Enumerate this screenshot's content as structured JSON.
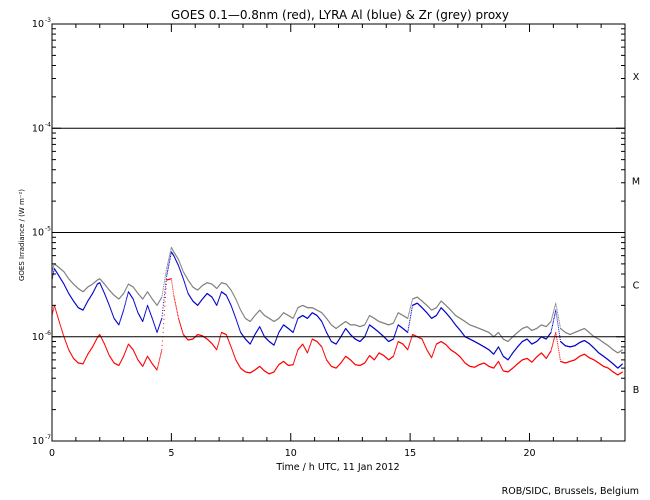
{
  "chart_data": {
    "type": "scatter",
    "title": "GOES 0.1—0.8nm (red), LYRA Al (blue) & Zr (grey) proxy",
    "xlabel": "Time / h UTC, 11 Jan 2012",
    "ylabel": "GOES Irradiance / (W m⁻²)",
    "xlim": [
      0,
      24
    ],
    "ylim": [
      1e-07,
      0.001
    ],
    "yscale": "log",
    "x_ticks": [
      "0",
      "5",
      "10",
      "15",
      "20"
    ],
    "y_ticks": [
      {
        "value": 1e-07,
        "base": "10",
        "exp": "-7"
      },
      {
        "value": 1e-06,
        "base": "10",
        "exp": "-6"
      },
      {
        "value": 1e-05,
        "base": "10",
        "exp": "-5"
      },
      {
        "value": 0.0001,
        "base": "10",
        "exp": "-4"
      },
      {
        "value": 0.001,
        "base": "10",
        "exp": "-3"
      }
    ],
    "flare_classes": [
      {
        "label": "B",
        "level": 3.16e-07
      },
      {
        "label": "C",
        "level": 3.16e-06
      },
      {
        "label": "M",
        "level": 3.16e-05
      },
      {
        "label": "X",
        "level": 0.000316
      }
    ],
    "threshold_lines": [
      1e-06,
      1e-05,
      0.0001
    ],
    "grid": false,
    "legend": "none",
    "series": [
      {
        "color": "#ff0000",
        "x": [
          0.0,
          0.1,
          0.3,
          0.5,
          0.7,
          0.9,
          1.1,
          1.3,
          1.5,
          1.7,
          1.9,
          2.0,
          2.2,
          2.4,
          2.6,
          2.8,
          3.0,
          3.2,
          3.4,
          3.6,
          3.8,
          4.0,
          4.2,
          4.4,
          4.6,
          4.8,
          5.0,
          5.1,
          5.3,
          5.5,
          5.7,
          5.9,
          6.1,
          6.3,
          6.5,
          6.7,
          6.9,
          7.1,
          7.3,
          7.5,
          7.7,
          7.9,
          8.1,
          8.3,
          8.5,
          8.7,
          8.9,
          9.1,
          9.3,
          9.5,
          9.7,
          9.9,
          10.1,
          10.3,
          10.5,
          10.7,
          10.9,
          11.1,
          11.3,
          11.5,
          11.7,
          11.9,
          12.1,
          12.3,
          12.5,
          12.7,
          12.9,
          13.1,
          13.3,
          13.5,
          13.7,
          13.9,
          14.1,
          14.3,
          14.5,
          14.7,
          14.9,
          15.1,
          15.3,
          15.5,
          15.7,
          15.9,
          16.1,
          16.3,
          16.5,
          16.7,
          16.9,
          17.1,
          17.3,
          17.5,
          17.7,
          17.9,
          18.1,
          18.3,
          18.5,
          18.7,
          18.9,
          19.1,
          19.3,
          19.5,
          19.7,
          19.9,
          20.1,
          20.3,
          20.5,
          20.7,
          20.9,
          21.1,
          21.3,
          21.5,
          21.7,
          21.9,
          22.1,
          22.3,
          22.5,
          22.7,
          22.9,
          23.1,
          23.3,
          23.5,
          23.7,
          23.9
        ],
        "y": [
          1.6e-06,
          2e-06,
          1.4e-06,
          1e-06,
          7.5e-07,
          6.2e-07,
          5.6e-07,
          5.5e-07,
          6.8e-07,
          8e-07,
          9.8e-07,
          1.05e-06,
          8.5e-07,
          6.6e-07,
          5.6e-07,
          5.3e-07,
          6.5e-07,
          8.5e-07,
          7.5e-07,
          6e-07,
          5.2e-07,
          6.5e-07,
          5.5e-07,
          4.8e-07,
          7.5e-07,
          3.5e-06,
          3.6e-06,
          2.5e-06,
          1.5e-06,
          1.05e-06,
          9.3e-07,
          9.5e-07,
          1.05e-06,
          1.02e-06,
          9.5e-07,
          8.6e-07,
          7.5e-07,
          1.1e-06,
          1.05e-06,
          8e-07,
          6e-07,
          5e-07,
          4.6e-07,
          4.5e-07,
          4.8e-07,
          5.2e-07,
          4.7e-07,
          4.4e-07,
          4.6e-07,
          5.4e-07,
          5.8e-07,
          5.3e-07,
          5.4e-07,
          7.5e-07,
          8.5e-07,
          7e-07,
          9.5e-07,
          9e-07,
          8e-07,
          6e-07,
          5.2e-07,
          5e-07,
          5.6e-07,
          6.5e-07,
          6e-07,
          5.4e-07,
          5.3e-07,
          5.6e-07,
          6.6e-07,
          6e-07,
          7e-07,
          6.6e-07,
          6e-07,
          6.5e-07,
          9e-07,
          8.5e-07,
          7.5e-07,
          1.05e-06,
          1e-06,
          9.5e-07,
          7.5e-07,
          6.3e-07,
          8.5e-07,
          9e-07,
          8.4e-07,
          7.5e-07,
          7e-07,
          6.4e-07,
          5.6e-07,
          5.2e-07,
          5.1e-07,
          5.4e-07,
          5.6e-07,
          5.2e-07,
          5e-07,
          5.8e-07,
          4.7e-07,
          4.6e-07,
          5e-07,
          5.5e-07,
          6e-07,
          6.2e-07,
          5.7e-07,
          6.4e-07,
          7e-07,
          6.2e-07,
          7.3e-07,
          1.1e-06,
          5.8e-07,
          5.6e-07,
          5.8e-07,
          6e-07,
          6.5e-07,
          6.8e-07,
          6.3e-07,
          6e-07,
          5.6e-07,
          5.2e-07,
          5e-07,
          4.6e-07,
          4.3e-07,
          4.6e-07
        ]
      },
      {
        "color": "#0000cc",
        "x": [
          0.0,
          0.1,
          0.3,
          0.5,
          0.7,
          0.9,
          1.1,
          1.3,
          1.5,
          1.7,
          1.9,
          2.0,
          2.2,
          2.4,
          2.6,
          2.8,
          3.0,
          3.2,
          3.4,
          3.6,
          3.8,
          4.0,
          4.2,
          4.4,
          4.6,
          4.8,
          5.0,
          5.1,
          5.3,
          5.5,
          5.7,
          5.9,
          6.1,
          6.3,
          6.5,
          6.7,
          6.9,
          7.1,
          7.3,
          7.5,
          7.7,
          7.9,
          8.1,
          8.3,
          8.5,
          8.7,
          8.9,
          9.1,
          9.3,
          9.5,
          9.7,
          9.9,
          10.1,
          10.3,
          10.5,
          10.7,
          10.9,
          11.1,
          11.3,
          11.5,
          11.7,
          11.9,
          12.1,
          12.3,
          12.5,
          12.7,
          12.9,
          13.1,
          13.3,
          13.5,
          13.7,
          13.9,
          14.1,
          14.3,
          14.5,
          14.7,
          14.9,
          15.1,
          15.3,
          15.5,
          15.7,
          15.9,
          16.1,
          16.3,
          16.5,
          16.7,
          16.9,
          17.1,
          17.3,
          17.5,
          17.7,
          17.9,
          18.1,
          18.3,
          18.5,
          18.7,
          18.9,
          19.1,
          19.3,
          19.5,
          19.7,
          19.9,
          20.1,
          20.3,
          20.5,
          20.7,
          20.9,
          21.1,
          21.3,
          21.5,
          21.7,
          21.9,
          22.1,
          22.3,
          22.5,
          22.7,
          22.9,
          23.1,
          23.3,
          23.5,
          23.7,
          23.9
        ],
        "y": [
          3.5e-06,
          4.5e-06,
          3.8e-06,
          3.2e-06,
          2.6e-06,
          2.2e-06,
          1.9e-06,
          1.8e-06,
          2.2e-06,
          2.6e-06,
          3.2e-06,
          3.3e-06,
          2.6e-06,
          2e-06,
          1.5e-06,
          1.3e-06,
          1.8e-06,
          2.7e-06,
          2.3e-06,
          1.7e-06,
          1.4e-06,
          2e-06,
          1.5e-06,
          1.1e-06,
          1.5e-06,
          3.8e-06,
          6.5e-06,
          6e-06,
          4.8e-06,
          3.6e-06,
          2.6e-06,
          2.2e-06,
          2e-06,
          2.3e-06,
          2.6e-06,
          2.4e-06,
          2e-06,
          2.7e-06,
          2.5e-06,
          2e-06,
          1.5e-06,
          1.1e-06,
          9.5e-07,
          8.5e-07,
          1.05e-06,
          1.25e-06,
          1e-06,
          9e-07,
          8.3e-07,
          1.1e-06,
          1.3e-06,
          1.2e-06,
          1.1e-06,
          1.5e-06,
          1.6e-06,
          1.5e-06,
          1.7e-06,
          1.6e-06,
          1.4e-06,
          1.1e-06,
          9e-07,
          8.5e-07,
          1e-06,
          1.2e-06,
          1.05e-06,
          9.5e-07,
          9e-07,
          1e-06,
          1.3e-06,
          1.2e-06,
          1.1e-06,
          1e-06,
          9e-07,
          9.5e-07,
          1.3e-06,
          1.2e-06,
          1.1e-06,
          2e-06,
          2.1e-06,
          1.9e-06,
          1.7e-06,
          1.5e-06,
          1.6e-06,
          1.9e-06,
          1.7e-06,
          1.5e-06,
          1.3e-06,
          1.15e-06,
          1e-06,
          9.5e-07,
          9e-07,
          8.5e-07,
          8e-07,
          7.5e-07,
          6.8e-07,
          8e-07,
          6.5e-07,
          6e-07,
          7e-07,
          8e-07,
          9e-07,
          9.5e-07,
          8.5e-07,
          9e-07,
          1e-06,
          9.5e-07,
          1.1e-06,
          1.8e-06,
          9e-07,
          8.2e-07,
          8e-07,
          8.2e-07,
          8.8e-07,
          9.2e-07,
          8.6e-07,
          7.8e-07,
          7e-07,
          6.5e-07,
          6e-07,
          5.5e-07,
          5e-07,
          5.5e-07
        ]
      },
      {
        "color": "#808080",
        "x": [
          0.0,
          0.1,
          0.3,
          0.5,
          0.7,
          0.9,
          1.1,
          1.3,
          1.5,
          1.7,
          1.9,
          2.0,
          2.2,
          2.4,
          2.6,
          2.8,
          3.0,
          3.2,
          3.4,
          3.6,
          3.8,
          4.0,
          4.2,
          4.4,
          4.6,
          4.8,
          5.0,
          5.1,
          5.3,
          5.5,
          5.7,
          5.9,
          6.1,
          6.3,
          6.5,
          6.7,
          6.9,
          7.1,
          7.3,
          7.5,
          7.7,
          7.9,
          8.1,
          8.3,
          8.5,
          8.7,
          8.9,
          9.1,
          9.3,
          9.5,
          9.7,
          9.9,
          10.1,
          10.3,
          10.5,
          10.7,
          10.9,
          11.1,
          11.3,
          11.5,
          11.7,
          11.9,
          12.1,
          12.3,
          12.5,
          12.7,
          12.9,
          13.1,
          13.3,
          13.5,
          13.7,
          13.9,
          14.1,
          14.3,
          14.5,
          14.7,
          14.9,
          15.1,
          15.3,
          15.5,
          15.7,
          15.9,
          16.1,
          16.3,
          16.5,
          16.7,
          16.9,
          17.1,
          17.3,
          17.5,
          17.7,
          17.9,
          18.1,
          18.3,
          18.5,
          18.7,
          18.9,
          19.1,
          19.3,
          19.5,
          19.7,
          19.9,
          20.1,
          20.3,
          20.5,
          20.7,
          20.9,
          21.1,
          21.3,
          21.5,
          21.7,
          21.9,
          22.1,
          22.3,
          22.5,
          22.7,
          22.9,
          23.1,
          23.3,
          23.5,
          23.7,
          23.9
        ],
        "y": [
          4.2e-06,
          5e-06,
          4.6e-06,
          4.2e-06,
          3.6e-06,
          3.2e-06,
          2.9e-06,
          2.7e-06,
          3e-06,
          3.2e-06,
          3.5e-06,
          3.6e-06,
          3.2e-06,
          2.8e-06,
          2.5e-06,
          2.3e-06,
          2.6e-06,
          3.2e-06,
          3e-06,
          2.6e-06,
          2.3e-06,
          2.7e-06,
          2.3e-06,
          2e-06,
          2.4e-06,
          4.5e-06,
          7.2e-06,
          6.5e-06,
          5.5e-06,
          4.2e-06,
          3.5e-06,
          3e-06,
          2.8e-06,
          3.1e-06,
          3.3e-06,
          3.2e-06,
          2.9e-06,
          3.3e-06,
          3.2e-06,
          2.8e-06,
          2.3e-06,
          1.8e-06,
          1.5e-06,
          1.4e-06,
          1.6e-06,
          1.8e-06,
          1.6e-06,
          1.5e-06,
          1.4e-06,
          1.5e-06,
          1.7e-06,
          1.6e-06,
          1.5e-06,
          1.9e-06,
          2e-06,
          1.9e-06,
          1.9e-06,
          1.8e-06,
          1.7e-06,
          1.5e-06,
          1.3e-06,
          1.2e-06,
          1.3e-06,
          1.4e-06,
          1.3e-06,
          1.3e-06,
          1.25e-06,
          1.3e-06,
          1.6e-06,
          1.5e-06,
          1.4e-06,
          1.35e-06,
          1.3e-06,
          1.35e-06,
          1.7e-06,
          1.6e-06,
          1.5e-06,
          2.3e-06,
          2.4e-06,
          2.2e-06,
          2e-06,
          1.8e-06,
          1.9e-06,
          2.2e-06,
          2e-06,
          1.8e-06,
          1.6e-06,
          1.5e-06,
          1.4e-06,
          1.3e-06,
          1.25e-06,
          1.2e-06,
          1.15e-06,
          1.1e-06,
          1e-06,
          1.1e-06,
          9.5e-07,
          9e-07,
          1e-06,
          1.1e-06,
          1.2e-06,
          1.25e-06,
          1.15e-06,
          1.2e-06,
          1.3e-06,
          1.25e-06,
          1.4e-06,
          2.1e-06,
          1.2e-06,
          1.1e-06,
          1.05e-06,
          1.1e-06,
          1.15e-06,
          1.2e-06,
          1.1e-06,
          1e-06,
          9.5e-07,
          8.8e-07,
          8.2e-07,
          7.5e-07,
          7e-07,
          7.5e-07
        ]
      }
    ]
  },
  "footer": {
    "credit": "ROB/SIDC, Brussels, Belgium"
  }
}
